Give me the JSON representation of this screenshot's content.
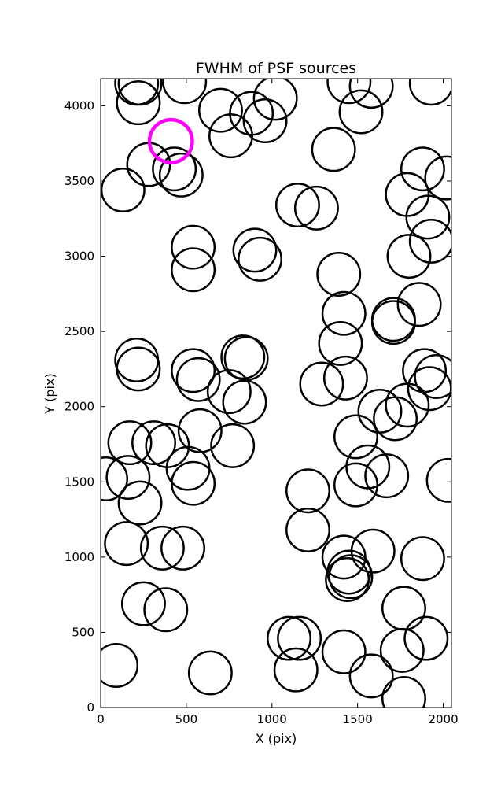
{
  "chart_data": {
    "type": "scatter",
    "title": "FWHM of PSF sources",
    "xlabel": "X (pix)",
    "ylabel": "Y (pix)",
    "xlim": [
      0,
      2048
    ],
    "ylim": [
      0,
      4180
    ],
    "xticks": [
      0,
      500,
      1000,
      1500,
      2000
    ],
    "yticks": [
      0,
      500,
      1000,
      1500,
      2000,
      2500,
      3000,
      3500,
      4000
    ],
    "grid": false,
    "highlight_color": "#ff00ff",
    "marker_color": "#000000",
    "radius_units": 125,
    "highlight": {
      "x": 410,
      "y": 3765
    },
    "points": [
      [
        210,
        4150
      ],
      [
        230,
        4150
      ],
      [
        220,
        4020
      ],
      [
        490,
        4160
      ],
      [
        1450,
        4160
      ],
      [
        1580,
        4130
      ],
      [
        1930,
        4150
      ],
      [
        700,
        3970
      ],
      [
        880,
        3950
      ],
      [
        1020,
        4050
      ],
      [
        960,
        3900
      ],
      [
        760,
        3800
      ],
      [
        1520,
        3960
      ],
      [
        280,
        3610
      ],
      [
        430,
        3580
      ],
      [
        470,
        3540
      ],
      [
        130,
        3440
      ],
      [
        1360,
        3710
      ],
      [
        1150,
        3340
      ],
      [
        1260,
        3320
      ],
      [
        1790,
        3410
      ],
      [
        1880,
        3580
      ],
      [
        2020,
        3520
      ],
      [
        1910,
        3260
      ],
      [
        540,
        3060
      ],
      [
        540,
        2910
      ],
      [
        900,
        3040
      ],
      [
        930,
        2980
      ],
      [
        1930,
        3100
      ],
      [
        1800,
        3000
      ],
      [
        1390,
        2880
      ],
      [
        1420,
        2620
      ],
      [
        1400,
        2420
      ],
      [
        1710,
        2580
      ],
      [
        1710,
        2560
      ],
      [
        1860,
        2680
      ],
      [
        210,
        2310
      ],
      [
        220,
        2250
      ],
      [
        540,
        2240
      ],
      [
        570,
        2180
      ],
      [
        750,
        2100
      ],
      [
        830,
        2330
      ],
      [
        850,
        2320
      ],
      [
        840,
        2030
      ],
      [
        1290,
        2150
      ],
      [
        1430,
        2190
      ],
      [
        1630,
        1970
      ],
      [
        1720,
        1920
      ],
      [
        1790,
        2010
      ],
      [
        1890,
        2240
      ],
      [
        1960,
        2200
      ],
      [
        1920,
        2120
      ],
      [
        170,
        1760
      ],
      [
        310,
        1760
      ],
      [
        390,
        1740
      ],
      [
        580,
        1840
      ],
      [
        770,
        1740
      ],
      [
        1490,
        1800
      ],
      [
        30,
        1520
      ],
      [
        160,
        1530
      ],
      [
        510,
        1590
      ],
      [
        540,
        1490
      ],
      [
        1210,
        1440
      ],
      [
        1560,
        1600
      ],
      [
        1670,
        1540
      ],
      [
        1490,
        1480
      ],
      [
        2030,
        1510
      ],
      [
        230,
        1360
      ],
      [
        150,
        1090
      ],
      [
        360,
        1060
      ],
      [
        480,
        1060
      ],
      [
        1210,
        1180
      ],
      [
        1420,
        1000
      ],
      [
        1590,
        1040
      ],
      [
        1880,
        990
      ],
      [
        1450,
        900
      ],
      [
        1460,
        870
      ],
      [
        1440,
        850
      ],
      [
        250,
        690
      ],
      [
        380,
        650
      ],
      [
        1100,
        460
      ],
      [
        1160,
        460
      ],
      [
        1770,
        660
      ],
      [
        1900,
        460
      ],
      [
        90,
        280
      ],
      [
        640,
        230
      ],
      [
        1140,
        250
      ],
      [
        1420,
        370
      ],
      [
        1580,
        210
      ],
      [
        1760,
        380
      ],
      [
        1770,
        60
      ]
    ]
  }
}
